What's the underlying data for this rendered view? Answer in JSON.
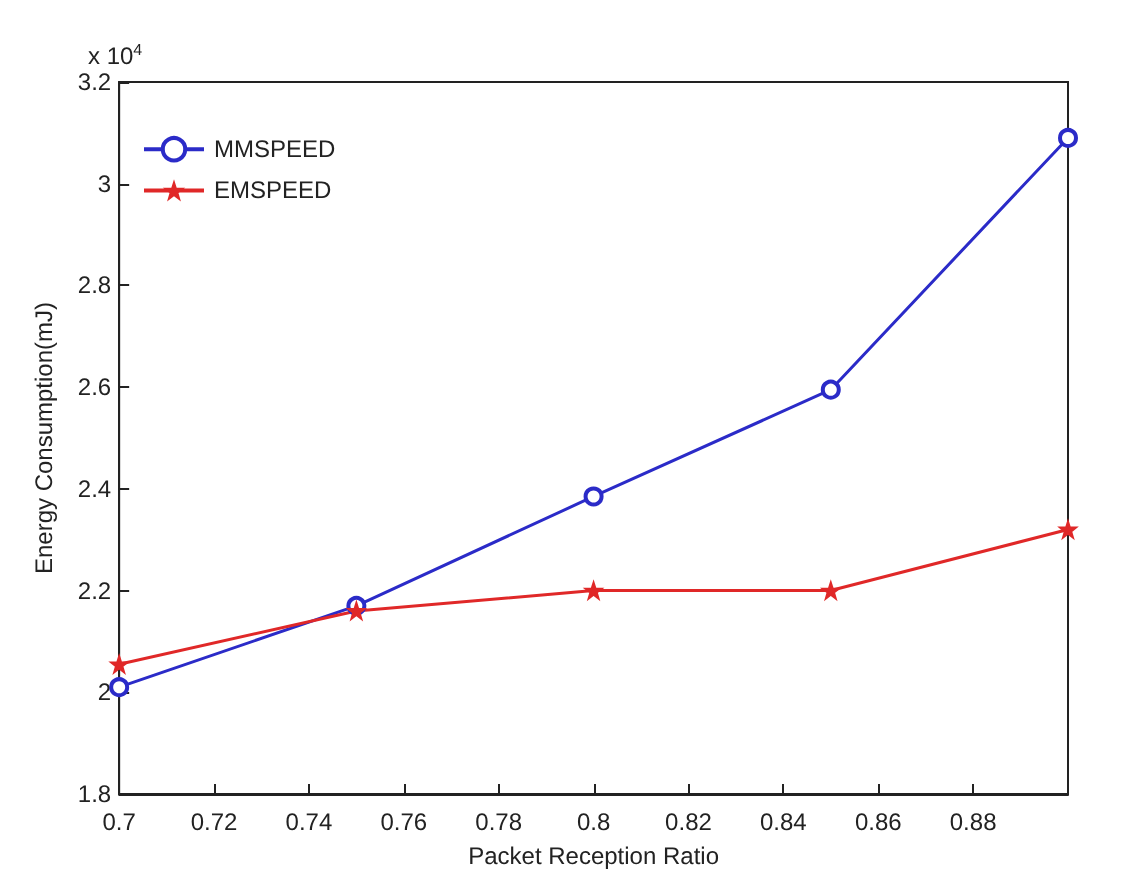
{
  "chart_data": {
    "type": "line",
    "xlabel": "Packet Reception Ratio",
    "ylabel": "Energy Consumption(mJ)",
    "annotations": [
      "x 10$^{4}$"
    ],
    "x": [
      0.7,
      0.75,
      0.8,
      0.85,
      0.9
    ],
    "series": [
      {
        "name": "MMSPEED",
        "color": "#2b2bc8",
        "values": [
          2.01,
          2.17,
          2.385,
          2.595,
          3.09
        ],
        "marker": "circle"
      },
      {
        "name": "EMSPEED",
        "color": "#e02828",
        "values": [
          2.055,
          2.16,
          2.2,
          2.2,
          2.32
        ],
        "marker": "star"
      }
    ],
    "xlim": [
      0.7,
      0.9
    ],
    "xticks": [
      0.7,
      0.72,
      0.74,
      0.76,
      0.78,
      0.8,
      0.82,
      0.84,
      0.86,
      0.88
    ],
    "ylim": [
      1.8,
      3.2
    ],
    "yticks": [
      1.8,
      2,
      2.2,
      2.4,
      2.6,
      2.8,
      3,
      3.2
    ],
    "legend": "top left",
    "line_style": "solid"
  }
}
